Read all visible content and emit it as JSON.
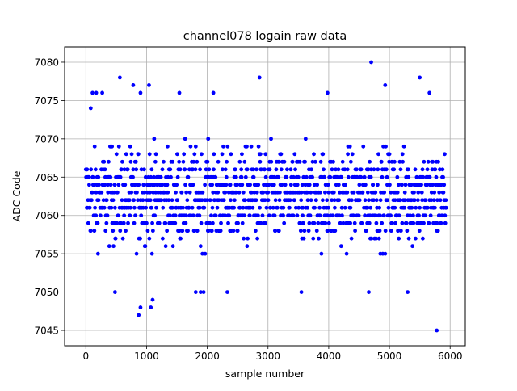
{
  "chart_data": {
    "type": "scatter",
    "title": "channel078 logain raw data",
    "xlabel": "sample number",
    "ylabel": "ADC Code",
    "xlim": [
      -350,
      6250
    ],
    "ylim": [
      7043,
      7082
    ],
    "xticks": [
      0,
      1000,
      2000,
      3000,
      4000,
      5000,
      6000
    ],
    "yticks": [
      7045,
      7050,
      7055,
      7060,
      7065,
      7070,
      7075,
      7080
    ],
    "grid": true,
    "marker_color": "#0000ff",
    "series": [
      {
        "values_description_only": false,
        "x_range": [
          0,
          5935
        ],
        "sample_count": 5936,
        "dense_range": [
          7053,
          7072
        ],
        "outliers": [
          {
            "x": 80,
            "y": 7074
          },
          {
            "x": 110,
            "y": 7076
          },
          {
            "x": 170,
            "y": 7076
          },
          {
            "x": 270,
            "y": 7076
          },
          {
            "x": 480,
            "y": 7050
          },
          {
            "x": 560,
            "y": 7078
          },
          {
            "x": 780,
            "y": 7077
          },
          {
            "x": 870,
            "y": 7047
          },
          {
            "x": 900,
            "y": 7048
          },
          {
            "x": 900,
            "y": 7076
          },
          {
            "x": 1040,
            "y": 7077
          },
          {
            "x": 1070,
            "y": 7048
          },
          {
            "x": 1100,
            "y": 7049
          },
          {
            "x": 1540,
            "y": 7076
          },
          {
            "x": 1810,
            "y": 7050
          },
          {
            "x": 1890,
            "y": 7050
          },
          {
            "x": 1940,
            "y": 7050
          },
          {
            "x": 2100,
            "y": 7076
          },
          {
            "x": 2330,
            "y": 7050
          },
          {
            "x": 2860,
            "y": 7078
          },
          {
            "x": 3550,
            "y": 7050
          },
          {
            "x": 3980,
            "y": 7076
          },
          {
            "x": 4660,
            "y": 7050
          },
          {
            "x": 4700,
            "y": 7080
          },
          {
            "x": 4930,
            "y": 7077
          },
          {
            "x": 5300,
            "y": 7050
          },
          {
            "x": 5500,
            "y": 7078
          },
          {
            "x": 5660,
            "y": 7076
          },
          {
            "x": 5780,
            "y": 7045
          }
        ]
      }
    ]
  }
}
